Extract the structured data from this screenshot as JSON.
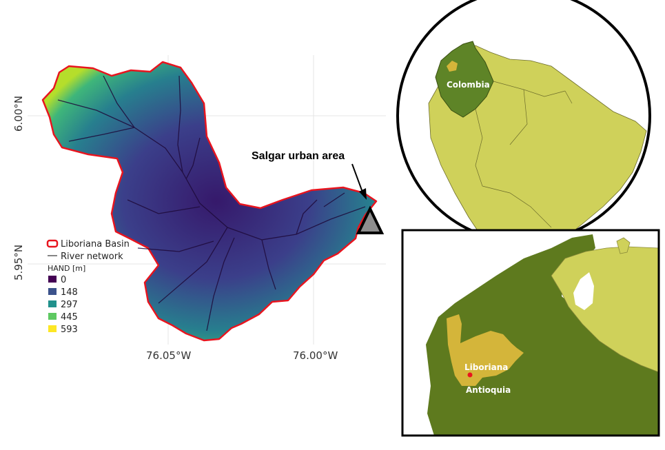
{
  "main_map": {
    "lat_ticks": [
      "6.00°N",
      "5.95°N"
    ],
    "lon_ticks": [
      "76.05°W",
      "76.00°W"
    ],
    "callout": "Salgar urban area",
    "legend": {
      "basin_label": "Liboriana Basin",
      "river_label": "River network",
      "hand_title": "HAND [m]",
      "hand_classes": [
        {
          "label": "0",
          "color": "#440154"
        },
        {
          "label": "148",
          "color": "#3b528b"
        },
        {
          "label": "297",
          "color": "#21918c"
        },
        {
          "label": "445",
          "color": "#5ec962"
        },
        {
          "label": "593",
          "color": "#fde725"
        }
      ]
    },
    "colors": {
      "basin_outline": "#e8141e",
      "graticule": "#e4e4e4"
    }
  },
  "inset_continent": {
    "country_label": "Colombia",
    "colors": {
      "land": "#cfd15a",
      "colombia": "#5e8427",
      "highlight": "#d4b53a",
      "ocean": "#ffffff"
    }
  },
  "inset_region": {
    "basin_label": "Liboriana",
    "department_label": "Antioquia",
    "colors": {
      "colombia": "#5e7a1e",
      "neighbor": "#cfd15a",
      "antioquia": "#d4b53a",
      "basin": "#e8141e"
    }
  }
}
